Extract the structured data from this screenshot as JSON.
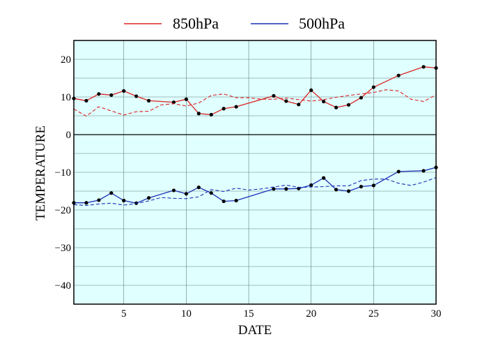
{
  "chart_data": {
    "type": "line",
    "xlabel": "DATE",
    "ylabel": "TEMPERATURE",
    "xlim": [
      1,
      30
    ],
    "ylim": [
      -45,
      25
    ],
    "xticks": [
      5,
      10,
      15,
      20,
      25,
      30
    ],
    "yticks": [
      20,
      10,
      0,
      -10,
      -20,
      -30,
      -40
    ],
    "xtick_labels": [
      "5",
      "10",
      "15",
      "20",
      "25",
      "30"
    ],
    "ytick_labels": [
      "20",
      "10",
      "0",
      "−10",
      "−20",
      "−30",
      "−40"
    ],
    "grid": true,
    "background_color": "#e0ffff",
    "legend_position": "top-center",
    "series": [
      {
        "name": "850hPa",
        "color": "#dd2222",
        "style": "solid-markers",
        "x": [
          1,
          2,
          3,
          4,
          5,
          6,
          7,
          9,
          10,
          11,
          12,
          13,
          14,
          17,
          18,
          19,
          20,
          21,
          22,
          23,
          24,
          25,
          27,
          29,
          30
        ],
        "y": [
          9.6,
          9.0,
          10.8,
          10.5,
          11.6,
          10.2,
          9.0,
          8.6,
          9.4,
          5.6,
          5.3,
          6.9,
          7.4,
          10.3,
          8.9,
          8.0,
          11.8,
          8.8,
          7.2,
          7.9,
          9.8,
          12.6,
          15.7,
          18.0,
          17.7
        ]
      },
      {
        "name": "500hPa",
        "color": "#1a2fb5",
        "style": "solid-markers",
        "x": [
          1,
          2,
          3,
          4,
          5,
          6,
          7,
          9,
          10,
          11,
          12,
          13,
          14,
          17,
          18,
          19,
          20,
          21,
          22,
          23,
          24,
          25,
          27,
          29,
          30
        ],
        "y": [
          -18.1,
          -18.1,
          -17.4,
          -15.5,
          -17.5,
          -18.2,
          -16.8,
          -14.8,
          -15.7,
          -14.0,
          -15.5,
          -17.7,
          -17.5,
          -14.4,
          -14.4,
          -14.3,
          -13.4,
          -11.5,
          -14.6,
          -15.0,
          -13.8,
          -13.5,
          -9.8,
          -9.6,
          -8.7
        ]
      },
      {
        "name": "",
        "color": "#dd2222",
        "style": "dashed",
        "x": [
          1,
          2,
          3,
          4,
          5,
          6,
          7,
          8,
          9,
          10,
          11,
          12,
          13,
          14,
          15,
          16,
          17,
          18,
          19,
          20,
          21,
          22,
          23,
          24,
          25,
          26,
          27,
          28,
          29,
          30
        ],
        "y": [
          6.8,
          4.9,
          7.4,
          6.3,
          5.2,
          6.1,
          6.2,
          7.9,
          8.2,
          7.6,
          8.4,
          10.4,
          10.8,
          9.8,
          9.8,
          9.4,
          9.4,
          9.7,
          9.3,
          8.9,
          9.3,
          9.9,
          10.4,
          10.8,
          11.2,
          11.9,
          11.6,
          9.4,
          8.8,
          10.6
        ]
      },
      {
        "name": "",
        "color": "#1a2fb5",
        "style": "dashed",
        "x": [
          1,
          2,
          3,
          4,
          5,
          6,
          7,
          8,
          9,
          10,
          11,
          12,
          13,
          14,
          15,
          16,
          17,
          18,
          19,
          20,
          21,
          22,
          23,
          24,
          25,
          26,
          27,
          28,
          29,
          30
        ],
        "y": [
          -18.6,
          -18.8,
          -18.4,
          -18.2,
          -18.7,
          -18.3,
          -17.6,
          -16.7,
          -16.9,
          -17.0,
          -16.5,
          -14.6,
          -15.1,
          -14.2,
          -14.7,
          -14.4,
          -13.9,
          -13.4,
          -14.0,
          -13.9,
          -13.8,
          -13.6,
          -13.6,
          -12.2,
          -11.8,
          -11.8,
          -12.9,
          -13.5,
          -12.6,
          -11.4
        ]
      }
    ]
  }
}
